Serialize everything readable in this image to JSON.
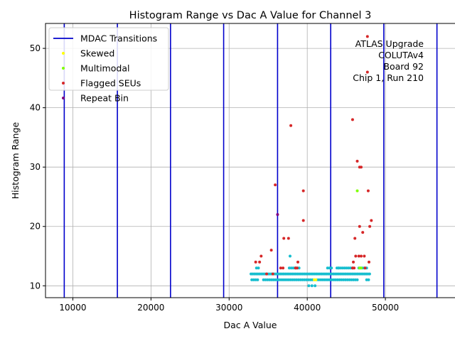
{
  "chart_data": {
    "type": "scatter",
    "title": "Histogram Range vs Dac A Value for Channel 3",
    "xlabel": "Dac A Value",
    "ylabel": "Histogram Range",
    "xlim": [
      6500,
      59000
    ],
    "ylim": [
      8,
      54.2
    ],
    "xticks": [
      10000,
      20000,
      30000,
      40000,
      50000
    ],
    "yticks": [
      10,
      20,
      30,
      40,
      50
    ],
    "grid": true,
    "legend_position": "top-left",
    "annotation": [
      "ATLAS Upgrade",
      "COLUTAv4",
      "Board 92",
      "Chip 1, Run 210"
    ],
    "colors": {
      "mdac": "#0000cc",
      "normal": "#17becf",
      "skewed": "#ffff00",
      "multimodal": "#7fff00",
      "flagged": "#d62728",
      "repeat": "#800080",
      "grid": "#b0b0b0"
    },
    "mdac_transitions": [
      8900,
      15700,
      22500,
      29300,
      36200,
      43000,
      49800,
      56600
    ],
    "legend": [
      {
        "name": "MDAC Transitions",
        "kind": "line",
        "color": "#0000cc"
      },
      {
        "name": "Skewed",
        "kind": "dot",
        "color": "#ffff00"
      },
      {
        "name": "Multimodal",
        "kind": "dot",
        "color": "#7fff00"
      },
      {
        "name": "Flagged SEUs",
        "kind": "dot",
        "color": "#d62728"
      },
      {
        "name": "Repeat Bin",
        "kind": "dot",
        "color": "#800080"
      }
    ],
    "normal_bands": [
      {
        "y": 10,
        "ranges": [
          [
            40200,
            41000
          ]
        ],
        "step": 400
      },
      {
        "y": 11,
        "ranges": [
          [
            32900,
            33700
          ],
          [
            34400,
            46400
          ],
          [
            47600,
            48000
          ]
        ],
        "step": 250
      },
      {
        "y": 12,
        "ranges": [
          [
            32800,
            48100
          ]
        ],
        "step": 220
      },
      {
        "y": 13,
        "ranges": [
          [
            33500,
            33800
          ],
          [
            37700,
            39000
          ],
          [
            42600,
            43200
          ],
          [
            43800,
            46000
          ],
          [
            46600,
            47600
          ]
        ],
        "step": 250
      }
    ],
    "normal_extra": [
      {
        "x": 37800,
        "y": 15
      },
      {
        "x": 38500,
        "y": 13
      },
      {
        "x": 44000,
        "y": 13
      }
    ],
    "skewed": [
      {
        "x": 40900,
        "y": 11
      },
      {
        "x": 41100,
        "y": 11
      }
    ],
    "multimodal": [
      {
        "x": 46400,
        "y": 26
      },
      {
        "x": 46900,
        "y": 13
      },
      {
        "x": 46700,
        "y": 13
      }
    ],
    "flagged": [
      {
        "x": 47700,
        "y": 52
      },
      {
        "x": 47700,
        "y": 46
      },
      {
        "x": 37900,
        "y": 37
      },
      {
        "x": 45800,
        "y": 38
      },
      {
        "x": 46400,
        "y": 31
      },
      {
        "x": 46700,
        "y": 30
      },
      {
        "x": 46900,
        "y": 30
      },
      {
        "x": 35900,
        "y": 27
      },
      {
        "x": 39500,
        "y": 26
      },
      {
        "x": 47800,
        "y": 26
      },
      {
        "x": 39500,
        "y": 21
      },
      {
        "x": 48200,
        "y": 21
      },
      {
        "x": 46700,
        "y": 20
      },
      {
        "x": 48000,
        "y": 20
      },
      {
        "x": 47100,
        "y": 19
      },
      {
        "x": 37000,
        "y": 18
      },
      {
        "x": 37600,
        "y": 18
      },
      {
        "x": 46100,
        "y": 18
      },
      {
        "x": 35400,
        "y": 16
      },
      {
        "x": 34100,
        "y": 15
      },
      {
        "x": 46200,
        "y": 15
      },
      {
        "x": 46600,
        "y": 15
      },
      {
        "x": 46900,
        "y": 15
      },
      {
        "x": 47300,
        "y": 15
      },
      {
        "x": 33400,
        "y": 14
      },
      {
        "x": 33900,
        "y": 14
      },
      {
        "x": 38800,
        "y": 14
      },
      {
        "x": 45900,
        "y": 14
      },
      {
        "x": 47900,
        "y": 14
      },
      {
        "x": 36600,
        "y": 13
      },
      {
        "x": 36900,
        "y": 13
      },
      {
        "x": 38500,
        "y": 13
      },
      {
        "x": 38700,
        "y": 13
      },
      {
        "x": 45800,
        "y": 13
      },
      {
        "x": 46000,
        "y": 13
      },
      {
        "x": 47400,
        "y": 13
      },
      {
        "x": 34800,
        "y": 12
      },
      {
        "x": 35600,
        "y": 12
      }
    ],
    "repeat_bin": [
      {
        "x": 36200,
        "y": 22
      }
    ]
  }
}
